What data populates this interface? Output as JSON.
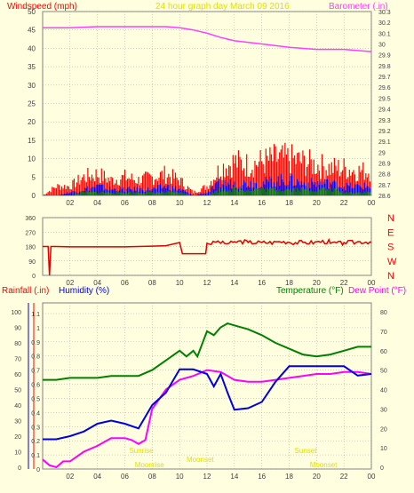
{
  "header": {
    "left_label": "Windspeed (mph)",
    "title": "24 hour graph day   March 09 2016",
    "right_label": "Barometer (.in)"
  },
  "colors": {
    "background": "#ffffe0",
    "grid": "#a0a0a0",
    "axis_text": "#404040",
    "wind_gust": "#ff0000",
    "wind_avg": "#0000ff",
    "wind_low": "#008000",
    "barometer": "#ff40ff",
    "direction": "#e00000",
    "rainfall": "#ff0000",
    "humidity": "#0000e0",
    "temperature": "#008000",
    "dewpoint": "#ff00ff",
    "annotation": "#e0e000"
  },
  "chart_data": [
    {
      "type": "line",
      "name_panel": "wind-barometer",
      "x_ticks": [
        "02",
        "04",
        "06",
        "08",
        "10",
        "12",
        "14",
        "16",
        "18",
        "20",
        "22",
        "00"
      ],
      "left_axis": {
        "label": "Windspeed (mph)",
        "ticks": [
          "0",
          "5",
          "10",
          "15",
          "20",
          "25",
          "30",
          "35",
          "40",
          "45",
          "50"
        ],
        "range": [
          0,
          50
        ]
      },
      "right_axis": {
        "label": "Barometer (.in)",
        "ticks": [
          "28.6",
          "28.7",
          "28.8",
          "28.9",
          "29",
          "29.1",
          "29.2",
          "29.3",
          "29.4",
          "29.5",
          "29.6",
          "29.7",
          "29.8",
          "29.9",
          "30",
          "30.1",
          "30.2",
          "30.3"
        ],
        "range": [
          28.6,
          30.3
        ]
      },
      "grid": true,
      "series": [
        {
          "name": "Barometer (.in)",
          "axis": "right",
          "x": [
            0,
            2,
            4,
            6,
            8,
            9,
            10,
            11,
            12,
            13,
            14,
            16,
            18,
            20,
            22,
            24
          ],
          "values": [
            30.15,
            30.15,
            30.16,
            30.16,
            30.16,
            30.16,
            30.15,
            30.13,
            30.1,
            30.06,
            30.03,
            30.0,
            29.97,
            29.95,
            29.95,
            29.93
          ]
        },
        {
          "name": "Wind gust",
          "axis": "left",
          "pattern": "bars",
          "x": [
            0,
            1,
            2,
            3,
            4,
            5,
            6,
            7,
            8,
            9,
            10,
            11,
            12,
            13,
            14,
            15,
            16,
            17,
            18,
            19,
            20,
            21,
            22,
            23,
            24
          ],
          "values": [
            0,
            3,
            3,
            6,
            7,
            5,
            6,
            5,
            6,
            7,
            5,
            1,
            3,
            9,
            11,
            10,
            11,
            12,
            12,
            11,
            10,
            9,
            9,
            8,
            8
          ]
        },
        {
          "name": "Wind average",
          "axis": "left",
          "pattern": "bars",
          "x": [
            0,
            1,
            2,
            3,
            4,
            5,
            6,
            7,
            8,
            9,
            10,
            11,
            12,
            13,
            14,
            15,
            16,
            17,
            18,
            19,
            20,
            21,
            22,
            23,
            24
          ],
          "values": [
            0,
            0,
            1,
            2,
            3,
            2,
            2,
            2,
            2,
            3,
            2,
            0,
            1,
            4,
            4,
            4,
            4,
            5,
            5,
            4,
            4,
            4,
            3,
            3,
            3
          ]
        },
        {
          "name": "Wind low",
          "axis": "left",
          "pattern": "bars",
          "x": [
            0,
            1,
            2,
            3,
            4,
            5,
            6,
            7,
            8,
            9,
            10,
            11,
            12,
            13,
            14,
            15,
            16,
            17,
            18,
            19,
            20,
            21,
            22,
            23,
            24
          ],
          "values": [
            0,
            0,
            0,
            1,
            1,
            1,
            1,
            1,
            1,
            1,
            1,
            0,
            0,
            2,
            2,
            2,
            2,
            2,
            2,
            2,
            2,
            2,
            1,
            1,
            1
          ]
        }
      ]
    },
    {
      "type": "line",
      "name_panel": "wind-direction",
      "x_ticks": [
        "02",
        "04",
        "06",
        "08",
        "10",
        "12",
        "14",
        "16",
        "18",
        "20",
        "22",
        "00"
      ],
      "left_axis": {
        "ticks": [
          "0",
          "90",
          "180",
          "270",
          "360"
        ],
        "range": [
          0,
          360
        ]
      },
      "right_axis": {
        "ticks": [
          "N",
          "W",
          "S",
          "E",
          "N"
        ]
      },
      "grid": true,
      "series": [
        {
          "name": "Wind direction",
          "x": [
            0,
            0.4,
            0.5,
            0.6,
            0.7,
            1,
            2,
            4,
            6,
            8,
            9,
            10,
            10.2,
            11,
            11.9,
            12,
            12.5,
            13,
            14,
            15,
            16,
            17,
            18,
            19,
            20,
            21,
            22,
            23,
            24
          ],
          "values": [
            180,
            180,
            0,
            180,
            180,
            180,
            178,
            178,
            178,
            182,
            185,
            205,
            135,
            135,
            135,
            200,
            210,
            200,
            210,
            205,
            205,
            210,
            205,
            205,
            210,
            200,
            205,
            210,
            205
          ]
        }
      ]
    },
    {
      "type": "line",
      "name_panel": "rain-humidity-temperature",
      "x_ticks": [
        "02",
        "04",
        "06",
        "08",
        "10",
        "12",
        "14",
        "16",
        "18",
        "20",
        "22",
        "00"
      ],
      "left_axis_rain": {
        "label": "Rainfall (.in)",
        "ticks": [
          "0",
          "0.1",
          "0.2",
          "0.3",
          "0.4",
          "0.5",
          "0.6",
          "0.7",
          "0.8",
          "0.9",
          "1",
          "1.1"
        ],
        "range": [
          0,
          1.1
        ]
      },
      "left_axis_humidity": {
        "label": "Humidity (%)",
        "ticks": [
          "0",
          "10",
          "20",
          "30",
          "40",
          "50",
          "60",
          "70",
          "80",
          "90",
          "100"
        ],
        "range": [
          0,
          100
        ]
      },
      "right_axis": {
        "label_temp": "Temperature (°F)",
        "label_dew": "Dew Point (°F)",
        "ticks": [
          "0",
          "10",
          "20",
          "30",
          "40",
          "50",
          "60",
          "70",
          "80"
        ],
        "range": [
          0,
          80
        ]
      },
      "grid": true,
      "annotations": [
        "Sunrise",
        "Moonrise",
        "Moonset",
        "Sunset",
        "Moonset"
      ],
      "series": [
        {
          "name": "Temperature (°F)",
          "axis": "right",
          "x": [
            0,
            1,
            2,
            3,
            4,
            5,
            6,
            7,
            8,
            9,
            10,
            10.5,
            11,
            11.3,
            12,
            12.5,
            13,
            13.5,
            14,
            15,
            16,
            17,
            18,
            19,
            20,
            21,
            22,
            23,
            24
          ],
          "values": [
            45,
            45,
            46,
            46,
            46,
            47,
            47,
            47,
            50,
            55,
            60,
            57,
            60,
            57,
            70,
            68,
            72,
            74,
            73,
            71,
            68,
            64,
            61,
            58,
            57,
            58,
            60,
            62,
            62
          ]
        },
        {
          "name": "Dew Point (°F)",
          "axis": "right",
          "x": [
            0,
            0.5,
            1,
            1.5,
            2,
            3,
            4,
            5,
            6,
            6.5,
            7,
            7.5,
            8,
            9,
            10,
            11,
            12,
            13,
            14,
            15,
            16,
            17,
            18,
            19,
            20,
            21,
            22,
            23,
            24
          ],
          "values": [
            4,
            1,
            0,
            3,
            3,
            8,
            11,
            15,
            15,
            14,
            12,
            14,
            30,
            40,
            45,
            47,
            50,
            49,
            45,
            44,
            44,
            45,
            46,
            47,
            48,
            48,
            49,
            49,
            48
          ]
        },
        {
          "name": "Humidity (%)",
          "axis": "humidity",
          "x": [
            0,
            1,
            2,
            3,
            4,
            5,
            6,
            7,
            8,
            9,
            10,
            11,
            12,
            12.5,
            13,
            13.5,
            14,
            15,
            16,
            17,
            18,
            19,
            20,
            21,
            22,
            23,
            24
          ],
          "values": [
            18,
            18,
            20,
            23,
            28,
            30,
            28,
            25,
            40,
            48,
            63,
            63,
            60,
            52,
            60,
            48,
            37,
            38,
            42,
            55,
            65,
            65,
            65,
            65,
            65,
            59,
            60
          ]
        }
      ]
    }
  ]
}
